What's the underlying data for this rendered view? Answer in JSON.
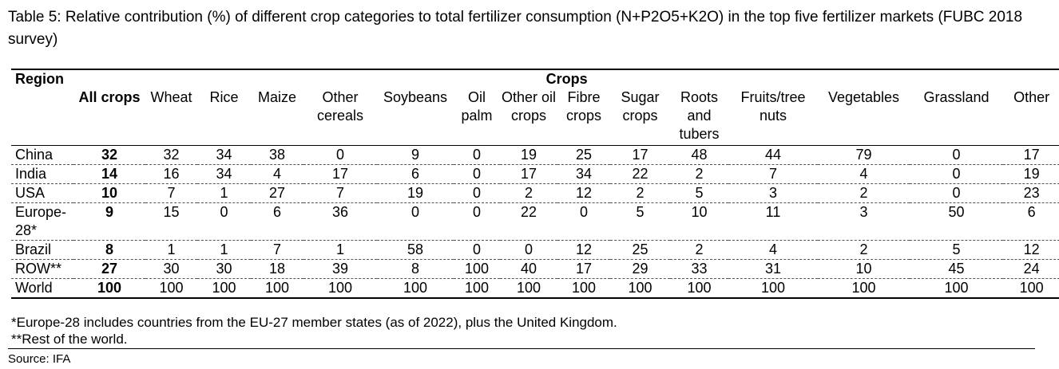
{
  "caption": "Table 5: Relative contribution (%) of different crop categories to total fertilizer consumption (N+P2O5+K2O) in the top five fertilizer markets (FUBC 2018 survey)",
  "table": {
    "region_header": "Region",
    "crops_header": "Crops",
    "columns": [
      "All crops",
      "Wheat",
      "Rice",
      "Maize",
      "Other cereals",
      "Soybeans",
      "Oil palm",
      "Other oil crops",
      "Fibre crops",
      "Sugar crops",
      "Roots and tubers",
      "Fruits/tree nuts",
      "Vegetables",
      "Grassland",
      "Other"
    ],
    "rows": [
      {
        "region": "China",
        "values": [
          "32",
          "32",
          "34",
          "38",
          "0",
          "9",
          "0",
          "19",
          "25",
          "17",
          "48",
          "44",
          "79",
          "0",
          "17"
        ]
      },
      {
        "region": "India",
        "values": [
          "14",
          "16",
          "34",
          "4",
          "17",
          "6",
          "0",
          "17",
          "34",
          "22",
          "2",
          "7",
          "4",
          "0",
          "19"
        ]
      },
      {
        "region": "USA",
        "values": [
          "10",
          "7",
          "1",
          "27",
          "7",
          "19",
          "0",
          "2",
          "12",
          "2",
          "5",
          "3",
          "2",
          "0",
          "23"
        ]
      },
      {
        "region": "Europe-28*",
        "values": [
          "9",
          "15",
          "0",
          "6",
          "36",
          "0",
          "0",
          "22",
          "0",
          "5",
          "10",
          "11",
          "3",
          "50",
          "6"
        ]
      },
      {
        "region": "Brazil",
        "values": [
          "8",
          "1",
          "1",
          "7",
          "1",
          "58",
          "0",
          "0",
          "12",
          "25",
          "2",
          "4",
          "2",
          "5",
          "12"
        ]
      },
      {
        "region": "ROW**",
        "values": [
          "27",
          "30",
          "30",
          "18",
          "39",
          "8",
          "100",
          "40",
          "17",
          "29",
          "33",
          "31",
          "10",
          "45",
          "24"
        ]
      },
      {
        "region": "World",
        "values": [
          "100",
          "100",
          "100",
          "100",
          "100",
          "100",
          "100",
          "100",
          "100",
          "100",
          "100",
          "100",
          "100",
          "100",
          "100"
        ]
      }
    ]
  },
  "notes": [
    "*Europe-28 includes countries from the EU-27 member states (as of 2022), plus the United Kingdom.",
    "**Rest of the world."
  ],
  "source": "Source: IFA"
}
